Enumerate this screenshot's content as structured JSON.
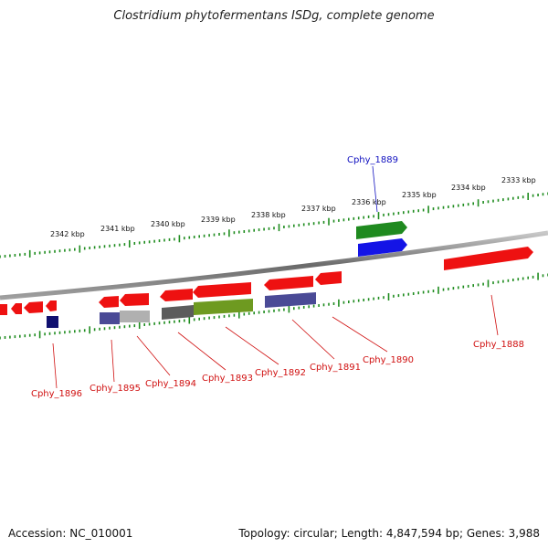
{
  "title": "Clostridium phytofermentans ISDg, complete genome",
  "footer": {
    "accession": "Accession: NC_010001",
    "topology": "Topology: circular; Length: 4,847,594 bp; Genes: 3,988"
  },
  "colors": {
    "backbone": "#8a8a8a",
    "tick": "#1e8c1e",
    "label_red": "#d01010",
    "label_blue": "#1010c0",
    "gene_red": "#ee1111",
    "gene_blue": "#1414e6",
    "gene_green": "#1f8a1f",
    "gene_navy": "#101070",
    "gene_slate": "#4a4a96",
    "gene_gray": "#9a9a9a",
    "gene_darkgray": "#5c5c5c",
    "gene_olive": "#6e9a20"
  },
  "kbp_labels": [
    "2342 kbp",
    "2341 kbp",
    "2340 kbp",
    "2339 kbp",
    "2338 kbp",
    "2337 kbp",
    "2336 kbp",
    "2335 kbp",
    "2334 kbp",
    "2333 kbp"
  ],
  "gene_labels": [
    "Cphy_1896",
    "Cphy_1895",
    "Cphy_1894",
    "Cphy_1893",
    "Cphy_1892",
    "Cphy_1891",
    "Cphy_1890",
    "Cphy_1889",
    "Cphy_1888"
  ]
}
